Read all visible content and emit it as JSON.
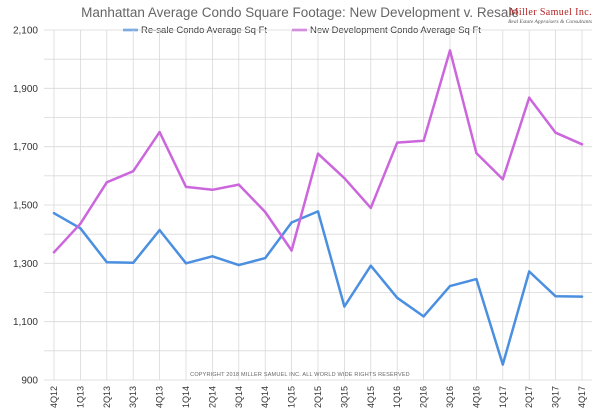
{
  "chart_data": {
    "type": "line",
    "title": "Manhattan Average Condo Square Footage: New Development v. Resale",
    "categories": [
      "4Q12",
      "1Q13",
      "2Q13",
      "3Q13",
      "4Q13",
      "1Q14",
      "2Q14",
      "3Q14",
      "4Q14",
      "1Q15",
      "2Q15",
      "3Q15",
      "4Q15",
      "1Q16",
      "2Q16",
      "3Q16",
      "4Q16",
      "1Q17",
      "2Q17",
      "3Q17",
      "4Q17"
    ],
    "series": [
      {
        "name": "Re-sale Condo Average Sq Ft",
        "color": "#4a8fe0",
        "values": [
          1472,
          1420,
          1304,
          1302,
          1414,
          1300,
          1324,
          1294,
          1318,
          1440,
          1478,
          1152,
          1292,
          1182,
          1118,
          1222,
          1246,
          953,
          1272,
          1187,
          1186
        ]
      },
      {
        "name": "New Development Condo Average Sq Ft",
        "color": "#cc66dd",
        "values": [
          1338,
          1436,
          1578,
          1616,
          1750,
          1562,
          1552,
          1570,
          1476,
          1344,
          1676,
          1592,
          1490,
          1714,
          1720,
          2030,
          1678,
          1588,
          1868,
          1748,
          1708
        ]
      }
    ],
    "y_ticks": [
      "2,100",
      "1,900",
      "1,700",
      "1,500",
      "1,300",
      "1,100",
      "900"
    ],
    "ylim": [
      900,
      2100
    ],
    "grid": true,
    "legend_position": "top"
  },
  "copyright": "COPYRIGHT 2018 MILLER SAMUEL INC.  ALL WORLD WIDE RIGHTS RESERVED",
  "logo": {
    "name": "Miller Samuel Inc.",
    "tagline": "Real Estate Appraisers & Consultants"
  }
}
